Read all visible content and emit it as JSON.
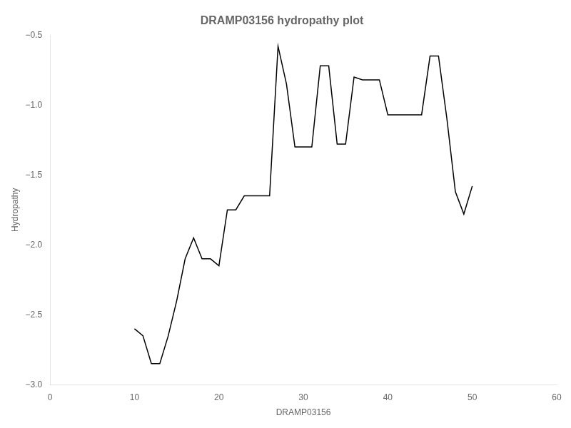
{
  "chart_data": {
    "type": "line",
    "title": "DRAMP03156 hydropathy plot",
    "xlabel": "DRAMP03156",
    "ylabel": "Hydropathy",
    "x": [
      10,
      11,
      12,
      13,
      14,
      15,
      16,
      17,
      18,
      19,
      20,
      21,
      22,
      23,
      24,
      25,
      26,
      27,
      28,
      29,
      30,
      31,
      32,
      33,
      34,
      35,
      36,
      37,
      38,
      39,
      40,
      41,
      42,
      43,
      44,
      45,
      46,
      47,
      48,
      49,
      50
    ],
    "values": [
      -2.6,
      -2.65,
      -2.85,
      -2.85,
      -2.65,
      -2.4,
      -2.1,
      -1.95,
      -2.1,
      -2.1,
      -2.15,
      -1.75,
      -1.75,
      -1.65,
      -1.65,
      -1.65,
      -1.65,
      -0.58,
      -0.85,
      -1.3,
      -1.3,
      -1.3,
      -0.72,
      -0.72,
      -1.28,
      -1.28,
      -0.8,
      -0.82,
      -0.82,
      -0.82,
      -1.07,
      -1.07,
      -1.07,
      -1.07,
      -1.07,
      -0.65,
      -0.65,
      -1.1,
      -1.62,
      -1.78,
      -1.58
    ],
    "color": "#000000",
    "xlim": [
      0,
      60
    ],
    "ylim": [
      -3.0,
      -0.5
    ],
    "xticks": [
      0,
      10,
      20,
      30,
      40,
      50,
      60
    ],
    "yticks": [
      {
        "value": -3.0,
        "label": "−3.0"
      },
      {
        "value": -2.5,
        "label": "−2.5"
      },
      {
        "value": -2.0,
        "label": "−2.0"
      },
      {
        "value": -1.5,
        "label": "−1.5"
      },
      {
        "value": -1.0,
        "label": "−1.0"
      },
      {
        "value": -0.5,
        "label": "−0.5"
      }
    ],
    "grid": false
  }
}
